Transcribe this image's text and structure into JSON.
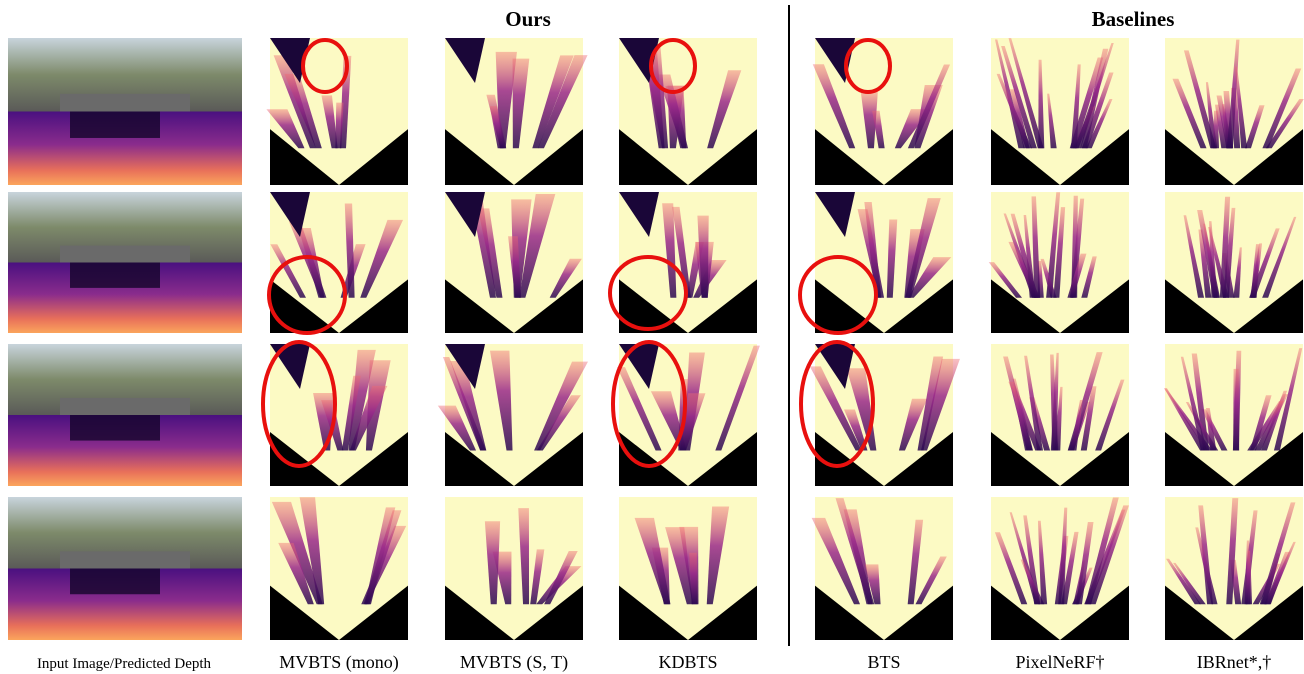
{
  "header": {
    "ours": "Ours",
    "baselines": "Baselines"
  },
  "columns": [
    "Input Image/Predicted Depth",
    "MVBTS (mono)",
    "MVBTS (S, T)",
    "KDBTS",
    "BTS",
    "PixelNeRF†",
    "IBRnet*,†"
  ]
}
